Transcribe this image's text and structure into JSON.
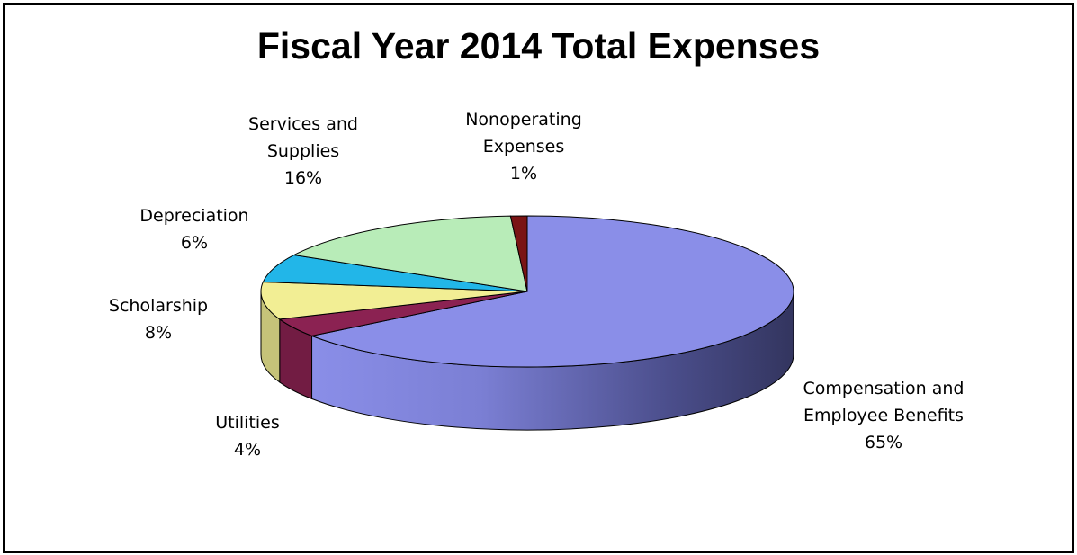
{
  "chart_data": {
    "type": "pie",
    "title": "Fiscal Year 2014 Total Expenses",
    "slices": [
      {
        "line1": "Compensation and",
        "line2": "Employee Benefits",
        "pct_label": "65%",
        "value": 65,
        "color": "#8a8ee8"
      },
      {
        "line1": "Utilities",
        "line2": "",
        "pct_label": "4%",
        "value": 4,
        "color": "#8b2252"
      },
      {
        "line1": "Scholarship",
        "line2": "",
        "pct_label": "8%",
        "value": 8,
        "color": "#f2ee94"
      },
      {
        "line1": "Depreciation",
        "line2": "",
        "pct_label": "6%",
        "value": 6,
        "color": "#22b6e8"
      },
      {
        "line1": "Services and",
        "line2": "Supplies",
        "pct_label": "16%",
        "value": 16,
        "color": "#b8ecb8"
      },
      {
        "line1": "Nonoperating",
        "line2": "Expenses",
        "pct_label": "1%",
        "value": 1,
        "color": "#7a1414"
      }
    ],
    "legend": "none"
  }
}
